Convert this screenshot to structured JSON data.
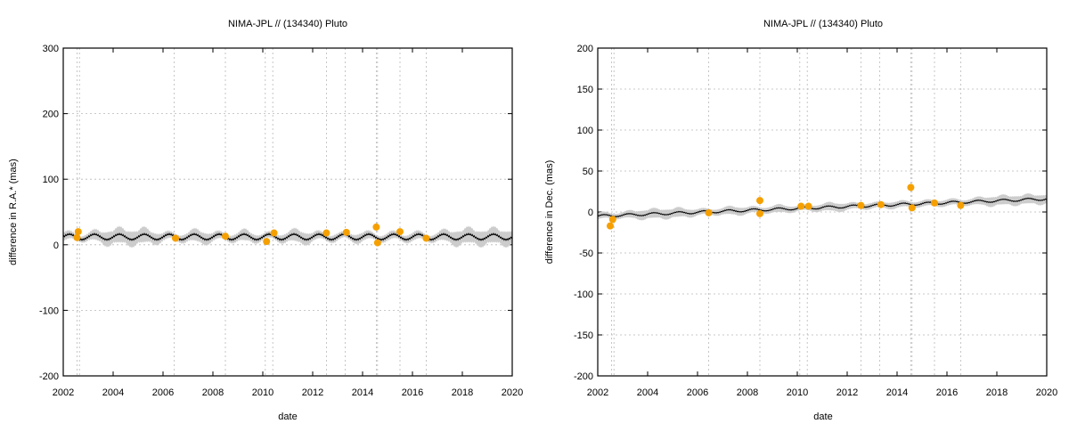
{
  "chart_data": [
    {
      "type": "scatter",
      "title": "NIMA-JPL // (134340) Pluto",
      "xlabel": "date",
      "ylabel": "difference in R.A.* (mas)",
      "xlim": [
        2002,
        2020
      ],
      "ylim": [
        -200,
        300
      ],
      "xticks": [
        "2002",
        "2004",
        "2006",
        "2008",
        "2010",
        "2012",
        "2014",
        "2016",
        "2018",
        "2020"
      ],
      "yticks": [
        "-200",
        "-100",
        "0",
        "100",
        "200",
        "300"
      ],
      "grid": true,
      "observation_dates": [
        2002.55,
        2002.65,
        2006.45,
        2008.5,
        2010.1,
        2010.4,
        2012.55,
        2013.3,
        2014.55,
        2014.6,
        2015.5,
        2016.55
      ],
      "model": {
        "mean_start": 12,
        "mean_end": 12,
        "oscillation": 4,
        "period": 1.0,
        "uncertainty_base": 4,
        "uncertainty_max": 12
      },
      "points": [
        {
          "x": 2002.6,
          "y": 20
        },
        {
          "x": 2002.55,
          "y": 11
        },
        {
          "x": 2006.5,
          "y": 10
        },
        {
          "x": 2008.5,
          "y": 13
        },
        {
          "x": 2010.15,
          "y": 5
        },
        {
          "x": 2010.45,
          "y": 18
        },
        {
          "x": 2012.55,
          "y": 18
        },
        {
          "x": 2013.35,
          "y": 19
        },
        {
          "x": 2014.55,
          "y": 27
        },
        {
          "x": 2014.6,
          "y": 3
        },
        {
          "x": 2015.5,
          "y": 20
        },
        {
          "x": 2016.55,
          "y": 10
        }
      ]
    },
    {
      "type": "scatter",
      "title": "NIMA-JPL // (134340) Pluto",
      "xlabel": "date",
      "ylabel": "difference in Dec. (mas)",
      "xlim": [
        2002,
        2020
      ],
      "ylim": [
        -200,
        200
      ],
      "xticks": [
        "2002",
        "2004",
        "2006",
        "2008",
        "2010",
        "2012",
        "2014",
        "2016",
        "2018",
        "2020"
      ],
      "yticks": [
        "-200",
        "-150",
        "-100",
        "-50",
        "0",
        "50",
        "100",
        "150",
        "200"
      ],
      "grid": true,
      "observation_dates": [
        2002.55,
        2002.65,
        2006.45,
        2008.5,
        2010.1,
        2010.4,
        2012.55,
        2013.3,
        2014.55,
        2014.6,
        2015.5,
        2016.55
      ],
      "model": {
        "mean_start": -5,
        "mean_end": 16,
        "oscillation": 1.5,
        "period": 1.0,
        "uncertainty_base": 3,
        "uncertainty_max": 6
      },
      "points": [
        {
          "x": 2002.5,
          "y": -17
        },
        {
          "x": 2002.6,
          "y": -9
        },
        {
          "x": 2006.45,
          "y": -1
        },
        {
          "x": 2008.5,
          "y": 14
        },
        {
          "x": 2008.5,
          "y": -2
        },
        {
          "x": 2010.15,
          "y": 7
        },
        {
          "x": 2010.45,
          "y": 7
        },
        {
          "x": 2012.55,
          "y": 8
        },
        {
          "x": 2013.35,
          "y": 9
        },
        {
          "x": 2014.55,
          "y": 30
        },
        {
          "x": 2014.6,
          "y": 5
        },
        {
          "x": 2015.5,
          "y": 11
        },
        {
          "x": 2016.55,
          "y": 8
        }
      ]
    }
  ]
}
